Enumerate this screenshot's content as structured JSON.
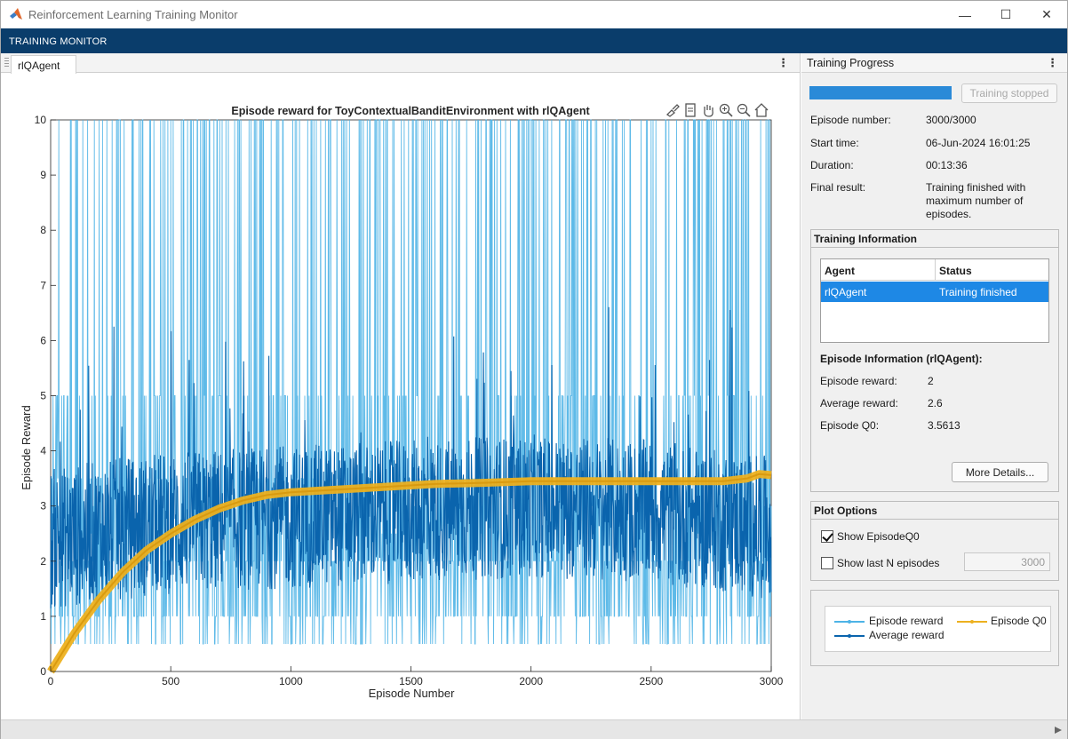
{
  "window": {
    "title": "Reinforcement Learning Training Monitor",
    "controls": {
      "minimize": "—",
      "maximize": "☐",
      "close": "✕"
    }
  },
  "ribbon": {
    "label": "TRAINING MONITOR"
  },
  "left_tab": {
    "label": "rlQAgent"
  },
  "chart": {
    "title": "Episode reward for ToyContextualBanditEnvironment with rlQAgent",
    "xlabel": "Episode Number",
    "ylabel": "Episode Reward",
    "toolbar_icons": [
      "brush-icon",
      "data-tips-icon",
      "pan-icon",
      "zoom-in-icon",
      "zoom-out-icon",
      "home-icon"
    ]
  },
  "chart_data": {
    "type": "line",
    "xlim": [
      0,
      3000
    ],
    "ylim": [
      0,
      10
    ],
    "xticks": [
      0,
      500,
      1000,
      1500,
      2000,
      2500,
      3000
    ],
    "yticks": [
      0,
      1,
      2,
      3,
      4,
      5,
      6,
      7,
      8,
      9,
      10
    ],
    "grid": false,
    "legend_position": "bottom-right panel",
    "series": [
      {
        "name": "Episode reward",
        "color": "#4db3e6",
        "levels": [
          0.5,
          1,
          2,
          2.5,
          3,
          3.5,
          5,
          10
        ]
      },
      {
        "name": "Average reward",
        "color": "#0a64ad",
        "baseline_points": [
          [
            0,
            2.4
          ],
          [
            500,
            2.7
          ],
          [
            1000,
            2.8
          ],
          [
            1500,
            2.9
          ],
          [
            2000,
            3.0
          ],
          [
            2500,
            2.9
          ],
          [
            3000,
            2.6
          ]
        ]
      },
      {
        "name": "Episode Q0",
        "color": "#edb120",
        "points": [
          [
            0,
            0
          ],
          [
            100,
            0.7
          ],
          [
            200,
            1.3
          ],
          [
            300,
            1.8
          ],
          [
            400,
            2.2
          ],
          [
            500,
            2.5
          ],
          [
            600,
            2.75
          ],
          [
            700,
            2.95
          ],
          [
            800,
            3.1
          ],
          [
            900,
            3.2
          ],
          [
            1000,
            3.25
          ],
          [
            1200,
            3.3
          ],
          [
            1400,
            3.35
          ],
          [
            1600,
            3.4
          ],
          [
            1800,
            3.42
          ],
          [
            2000,
            3.45
          ],
          [
            2200,
            3.45
          ],
          [
            2400,
            3.45
          ],
          [
            2600,
            3.45
          ],
          [
            2800,
            3.45
          ],
          [
            2900,
            3.5
          ],
          [
            2950,
            3.58
          ],
          [
            3000,
            3.56
          ]
        ]
      }
    ]
  },
  "right_panel": {
    "header": "Training Progress",
    "stop_button": "Training stopped",
    "progress_fraction": 1.0,
    "rows": [
      {
        "label": "Episode number:",
        "value": "3000/3000"
      },
      {
        "label": "Start time:",
        "value": "06-Jun-2024 16:01:25"
      },
      {
        "label": "Duration:",
        "value": "00:13:36"
      },
      {
        "label": "Final result:",
        "value": "Training finished with maximum number of episodes."
      }
    ],
    "training_info": {
      "title": "Training Information",
      "col_agent": "Agent",
      "col_status": "Status",
      "row_agent": "rlQAgent",
      "row_status": "Training finished",
      "episode_info_title": "Episode Information (rlQAgent):",
      "episode_reward_label": "Episode reward:",
      "episode_reward_value": "2",
      "average_reward_label": "Average reward:",
      "average_reward_value": "2.6",
      "episode_q0_label": "Episode Q0:",
      "episode_q0_value": "3.5613",
      "more_details": "More Details..."
    },
    "plot_options": {
      "title": "Plot Options",
      "show_q0_label": "Show EpisodeQ0",
      "show_q0_checked": true,
      "show_last_label": "Show last N episodes",
      "show_last_checked": false,
      "last_n_value": "3000"
    },
    "legend": {
      "episode_reward": "Episode reward",
      "episode_q0": "Episode Q0",
      "average_reward": "Average reward"
    }
  }
}
